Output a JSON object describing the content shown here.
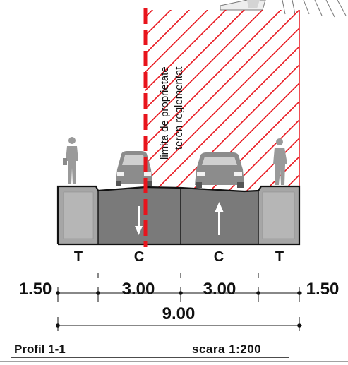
{
  "annotation": {
    "line1": "limita de proprietate",
    "line2": "teren reglementat"
  },
  "lanes": {
    "left_sidewalk": "T",
    "left_carriageway": "C",
    "right_carriageway": "C",
    "right_sidewalk": "T"
  },
  "dimensions": {
    "sidewalk_left": "1.50",
    "lane_left": "3.00",
    "lane_right": "3.00",
    "sidewalk_right": "1.50",
    "total": "9.00"
  },
  "footer": {
    "title": "Profil 1-1",
    "scale": "scara 1:200"
  },
  "colors": {
    "property_line": "#e8141c",
    "hatch": "#e8141c",
    "sidewalk": "#a6a6a6",
    "carriageway": "#7a7a7a",
    "outline": "#111111"
  }
}
